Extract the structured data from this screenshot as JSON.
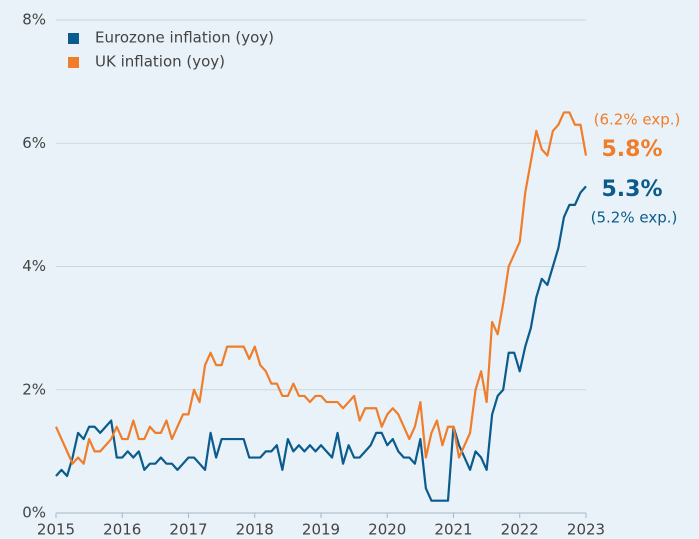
{
  "chart_data": {
    "type": "line",
    "x": [
      2015,
      2015.083,
      2015.167,
      2015.25,
      2015.333,
      2015.417,
      2015.5,
      2015.583,
      2015.667,
      2015.75,
      2015.833,
      2015.917,
      2016,
      2016.083,
      2016.167,
      2016.25,
      2016.333,
      2016.417,
      2016.5,
      2016.583,
      2016.667,
      2016.75,
      2016.833,
      2016.917,
      2017,
      2017.083,
      2017.167,
      2017.25,
      2017.333,
      2017.417,
      2017.5,
      2017.583,
      2017.667,
      2017.75,
      2017.833,
      2017.917,
      2018,
      2018.083,
      2018.167,
      2018.25,
      2018.333,
      2018.417,
      2018.5,
      2018.583,
      2018.667,
      2018.75,
      2018.833,
      2018.917,
      2019,
      2019.083,
      2019.167,
      2019.25,
      2019.333,
      2019.417,
      2019.5,
      2019.583,
      2019.667,
      2019.75,
      2019.833,
      2019.917,
      2020,
      2020.083,
      2020.167,
      2020.25,
      2020.333,
      2020.417,
      2020.5,
      2020.583,
      2020.667,
      2020.75,
      2020.833,
      2020.917,
      2021,
      2021.083,
      2021.167,
      2021.25,
      2021.333,
      2021.417,
      2021.5,
      2021.583,
      2021.667,
      2021.75,
      2021.833,
      2021.917,
      2022,
      2022.083,
      2022.167,
      2022.25,
      2022.333,
      2022.417,
      2022.5,
      2022.583,
      2022.667,
      2022.75,
      2022.833,
      2022.917,
      2023
    ],
    "series": [
      {
        "name": "Eurozone inflation (yoy)",
        "color": "#0b5b8c",
        "values": [
          0.6,
          0.7,
          0.6,
          0.9,
          1.3,
          1.2,
          1.4,
          1.4,
          1.3,
          1.4,
          1.5,
          0.9,
          0.9,
          1.0,
          0.9,
          1.0,
          0.7,
          0.8,
          0.8,
          0.9,
          0.8,
          0.8,
          0.7,
          0.8,
          0.9,
          0.9,
          0.8,
          0.7,
          1.3,
          0.9,
          1.2,
          1.2,
          1.2,
          1.2,
          1.2,
          0.9,
          0.9,
          0.9,
          1.0,
          1.0,
          1.1,
          0.7,
          1.2,
          1.0,
          1.1,
          1.0,
          1.1,
          1.0,
          1.1,
          1.0,
          0.9,
          1.3,
          0.8,
          1.1,
          0.9,
          0.9,
          1.0,
          1.1,
          1.3,
          1.3,
          1.1,
          1.2,
          1.0,
          0.9,
          0.9,
          0.8,
          1.2,
          0.4,
          0.2,
          0.2,
          0.2,
          0.2,
          1.4,
          1.1,
          0.9,
          0.7,
          1.0,
          0.9,
          0.7,
          1.6,
          1.9,
          2.0,
          2.6,
          2.6,
          2.3,
          2.7,
          3.0,
          3.5,
          3.8,
          3.7,
          4.0,
          4.3,
          4.8,
          5.0,
          5.0,
          5.2,
          5.3
        ]
      },
      {
        "name": "UK inflation (yoy)",
        "color": "#f07d2a",
        "values": [
          1.4,
          1.2,
          1.0,
          0.8,
          0.9,
          0.8,
          1.2,
          1.0,
          1.0,
          1.1,
          1.2,
          1.4,
          1.2,
          1.2,
          1.5,
          1.2,
          1.2,
          1.4,
          1.3,
          1.3,
          1.5,
          1.2,
          1.4,
          1.6,
          1.6,
          2.0,
          1.8,
          2.4,
          2.6,
          2.4,
          2.4,
          2.7,
          2.7,
          2.7,
          2.7,
          2.5,
          2.7,
          2.4,
          2.3,
          2.1,
          2.1,
          1.9,
          1.9,
          2.1,
          1.9,
          1.9,
          1.8,
          1.9,
          1.9,
          1.8,
          1.8,
          1.8,
          1.7,
          1.8,
          1.9,
          1.5,
          1.7,
          1.7,
          1.7,
          1.4,
          1.6,
          1.7,
          1.6,
          1.4,
          1.2,
          1.4,
          1.8,
          0.9,
          1.3,
          1.5,
          1.1,
          1.4,
          1.4,
          0.9,
          1.1,
          1.3,
          2.0,
          2.3,
          1.8,
          3.1,
          2.9,
          3.4,
          4.0,
          4.2,
          4.4,
          5.2,
          5.7,
          6.2,
          5.9,
          5.8,
          6.2,
          6.3,
          6.5,
          6.5,
          6.3,
          6.3,
          5.8
        ]
      }
    ],
    "xlim": [
      2015,
      2023
    ],
    "xticks": [
      2015,
      2016,
      2017,
      2018,
      2019,
      2020,
      2021,
      2022,
      2023
    ],
    "ylim": [
      0,
      8
    ],
    "yticks": [
      {
        "value": 0,
        "label": "0%"
      },
      {
        "value": 2,
        "label": "2%"
      },
      {
        "value": 4,
        "label": "4%"
      },
      {
        "value": 6,
        "label": "6%"
      },
      {
        "value": 8,
        "label": "8%"
      }
    ],
    "grid": true,
    "legend": "upper left",
    "annotations": [
      {
        "text": "(6.2% exp.)",
        "color": "#f07d2a"
      },
      {
        "text": "5.8%",
        "color": "#f07d2a"
      },
      {
        "text": "5.3%",
        "color": "#0b5b8c"
      },
      {
        "text": "(5.2% exp.)",
        "color": "#0b5b8c"
      }
    ]
  }
}
